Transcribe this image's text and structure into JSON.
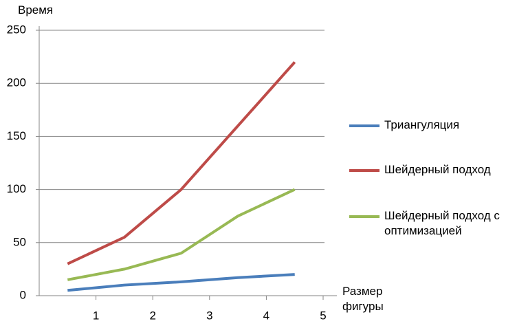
{
  "chart_data": {
    "type": "line",
    "y_label": "Время",
    "x_label": "Размер фигуры",
    "x": [
      0.5,
      1.5,
      2.5,
      3.5,
      4.5
    ],
    "series": [
      {
        "name": "Триангуляция",
        "color": "#4a7ebb",
        "values": [
          5,
          10,
          13,
          17,
          20
        ]
      },
      {
        "name": "Шейдерный подход",
        "color": "#be4b48",
        "values": [
          30,
          55,
          100,
          160,
          220
        ]
      },
      {
        "name": "Шейдерный подход с оптимизацией",
        "color": "#98b954",
        "values": [
          15,
          25,
          40,
          75,
          100
        ]
      }
    ],
    "xlim": [
      0,
      5
    ],
    "xticks": [
      1,
      2,
      3,
      4,
      5
    ],
    "ylim": [
      0,
      250
    ],
    "yticks": [
      0,
      50,
      100,
      150,
      200,
      250
    ],
    "grid": true
  }
}
